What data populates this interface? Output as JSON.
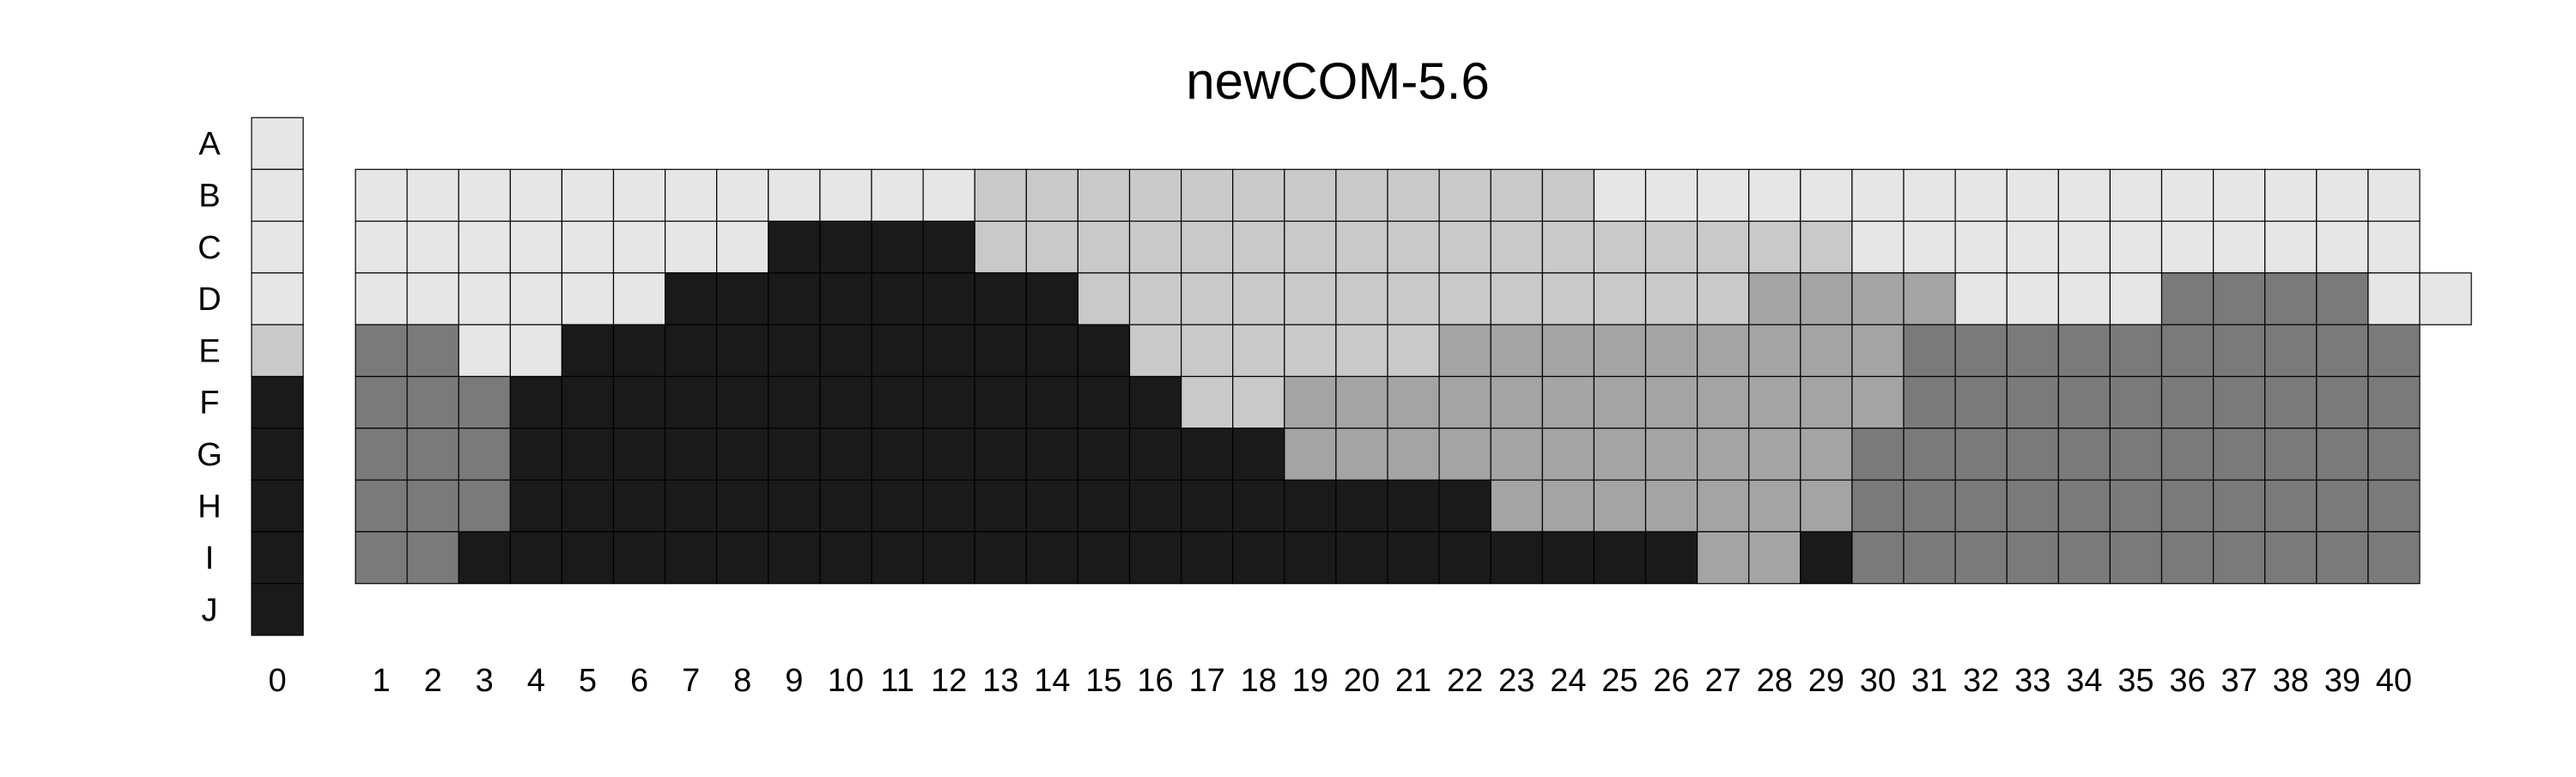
{
  "chart_data": {
    "type": "heatmap",
    "title": "newCOM-5.6",
    "row_labels": [
      "A",
      "B",
      "C",
      "D",
      "E",
      "F",
      "G",
      "H",
      "I",
      "J"
    ],
    "column_labels": [
      "0",
      "1",
      "2",
      "3",
      "4",
      "5",
      "6",
      "7",
      "8",
      "9",
      "10",
      "11",
      "12",
      "13",
      "14",
      "15",
      "16",
      "17",
      "18",
      "19",
      "20",
      "21",
      "22",
      "23",
      "24",
      "25",
      "26",
      "27",
      "28",
      "29",
      "30",
      "31",
      "32",
      "33",
      "34",
      "35",
      "36",
      "37",
      "38",
      "39",
      "40"
    ],
    "palette": {
      "0": "#e6e6e6",
      "1": "#c9c9c9",
      "2": "#a4a4a4",
      "3": "#7a7a7a",
      "4": "#1a1a1a"
    },
    "column_0": [
      0,
      0,
      0,
      0,
      1,
      4,
      4,
      4,
      4,
      4
    ],
    "grid_rows": [
      "B",
      "C",
      "D",
      "E",
      "F",
      "G",
      "H",
      "I"
    ],
    "grid": [
      [
        0,
        0,
        0,
        0,
        0,
        0,
        0,
        0,
        0,
        0,
        0,
        0,
        1,
        1,
        1,
        1,
        1,
        1,
        1,
        1,
        1,
        1,
        1,
        1,
        0,
        0,
        0,
        0,
        0,
        0,
        0,
        0,
        0,
        0,
        0,
        0,
        0,
        0,
        0,
        0
      ],
      [
        0,
        0,
        0,
        0,
        0,
        0,
        0,
        0,
        4,
        4,
        4,
        4,
        1,
        1,
        1,
        1,
        1,
        1,
        1,
        1,
        1,
        1,
        1,
        1,
        1,
        1,
        1,
        1,
        1,
        0,
        0,
        0,
        0,
        0,
        0,
        0,
        0,
        0,
        0,
        0
      ],
      [
        0,
        0,
        0,
        0,
        0,
        0,
        4,
        4,
        4,
        4,
        4,
        4,
        4,
        4,
        1,
        1,
        1,
        1,
        1,
        1,
        1,
        1,
        1,
        1,
        1,
        1,
        1,
        2,
        2,
        2,
        2,
        0,
        0,
        0,
        0,
        3,
        3,
        3,
        3,
        0,
        0
      ],
      [
        3,
        3,
        0,
        0,
        4,
        4,
        4,
        4,
        4,
        4,
        4,
        4,
        4,
        4,
        4,
        1,
        1,
        1,
        1,
        1,
        1,
        2,
        2,
        2,
        2,
        2,
        2,
        2,
        2,
        2,
        3,
        3,
        3,
        3,
        3,
        3,
        3,
        3,
        3,
        3
      ],
      [
        3,
        3,
        3,
        4,
        4,
        4,
        4,
        4,
        4,
        4,
        4,
        4,
        4,
        4,
        4,
        4,
        1,
        1,
        2,
        2,
        2,
        2,
        2,
        2,
        2,
        2,
        2,
        2,
        2,
        2,
        3,
        3,
        3,
        3,
        3,
        3,
        3,
        3,
        3,
        3
      ],
      [
        3,
        3,
        3,
        4,
        4,
        4,
        4,
        4,
        4,
        4,
        4,
        4,
        4,
        4,
        4,
        4,
        4,
        4,
        2,
        2,
        2,
        2,
        2,
        2,
        2,
        2,
        2,
        2,
        2,
        3,
        3,
        3,
        3,
        3,
        3,
        3,
        3,
        3,
        3,
        3
      ],
      [
        3,
        3,
        3,
        4,
        4,
        4,
        4,
        4,
        4,
        4,
        4,
        4,
        4,
        4,
        4,
        4,
        4,
        4,
        4,
        4,
        4,
        4,
        2,
        2,
        2,
        2,
        2,
        2,
        2,
        3,
        3,
        3,
        3,
        3,
        3,
        3,
        3,
        3,
        3,
        3
      ],
      [
        3,
        3,
        4,
        4,
        4,
        4,
        4,
        4,
        4,
        4,
        4,
        4,
        4,
        4,
        4,
        4,
        4,
        4,
        4,
        4,
        4,
        4,
        4,
        4,
        4,
        4,
        2,
        2,
        4,
        3,
        3,
        3,
        3,
        3,
        3,
        3,
        3,
        3,
        3,
        3
      ]
    ]
  }
}
